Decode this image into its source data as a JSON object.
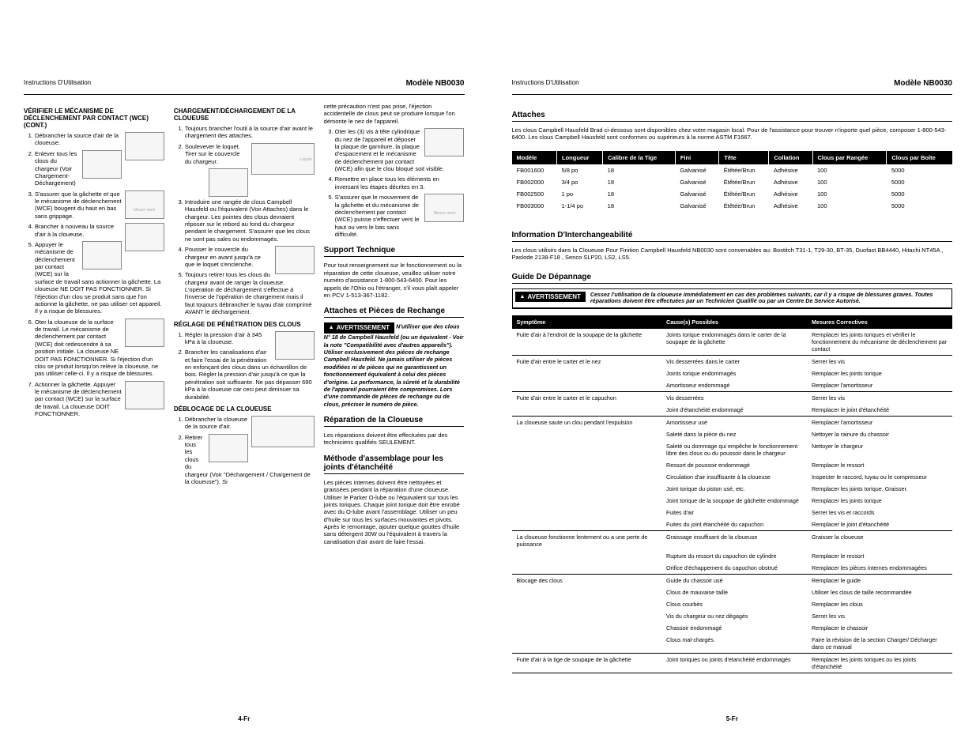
{
  "left": {
    "header": {
      "instructions": "Instructions D'Utilisation",
      "model": "Modèle NB0030"
    },
    "footer": "4-Fr",
    "col1": {
      "title": "VÉRIFIER LE MÉCANISME DE DÉCLENCHEMENT PAR CONTACT (WCE) (CONT.)",
      "items": [
        "Débrancher la source d'air de la cloueuse.",
        "Enlever tous les clous du chargeur (Voir Chargement-Déchargement)",
        "S'assurer que la gâchette et que le mécanisme de déclenchement (WCE) bougent du haut en bas sans grippage.",
        "Brancher à nouveau la source d'air à la cloueuse.",
        "Appuyer le mécanisme de déclenchement par contact (WCE) sur la surface de travail sans actionner la gâchette. La cloueuse NE DOIT PAS FONCTIONNER. Si l'éjection d'un clou se produit sans que l'on actionne la gâchette, ne pas utiliser cet appareil. Il y a risque de blessures.",
        "Oter la cloueuse de la surface de travail. Le mécanisme de déclenchement par contact (WCE) doit redescendre à sa position initiale. La cloueuse NE DOIT PAS FONCTIONNER. Si l'éjection d'un clou se produit lorsqu'on relève la cloueuse, ne pas utiliser celle-ci. Il y a risque de blessures.",
        "Actionner la gâchette. Appuyer le mécanisme de déclenchement par contact (WCE) sur la surface de travail. La cloueuse DOIT FONCTIONNER."
      ],
      "mouvement": "Mouve ment"
    },
    "col2": {
      "title1": "CHARGEMENT/DÉCHARGEMENT DE LA CLOUEUSE",
      "items1": [
        "Toujours brancher l'outil à la source d'air avant le chargement des attaches.",
        "Soulevever le loquet. Tirer sur le couvercle du chargeur.",
        "Introduire une rangée de clous Campbell Hausfeld ou l'équivalent (Voir Attaches) dans le chargeur. Les pointes des clous devraient réposer sur le rebord au fond du chargeur pendant le chargement. S'assurer que les clous ne sont pas sales ou endommagés.",
        "Pousser le couvercle du chargeur en avant jusqu'à ce que le loquet s'enclenche.",
        "Toujours retirer tous les clous du chargeur avant de ranger la cloueuse. L'opération de déchargement s'effectue à l'inverse de l'opération de chargement mais il faut toujours débrancher le tuyau d'air comprimé AVANT le déchargement."
      ],
      "loquet": "Loquet",
      "title2": "RÉGLAGE DE PÉNÉTRATION DES CLOUS",
      "items2": [
        "Régler la pression d'air à 345 kPa à la cloueuse.",
        "Brancher les canalisations d'air et faire l'essai de la pénétration en enfonçant des clous dans un échantillon de bois. Régler la pression d'air jusqu'à ce que la pénétration soit suffisante. Ne pas dépasser 690 kPa à la cloueuse car ceci peut diminuer sa durabilité."
      ],
      "title3": "DÉBLOCAGE DE LA CLOUEUSE",
      "items3": [
        "Débrancher la cloueuse de la source d'air.",
        "Retirer tous les clous du chargeur (Voir \"Déchargement / Chargement de la cloueuse\"). Si"
      ]
    },
    "col3": {
      "intro": "cette précaution n'est pas prise, l'éjection accidentelle de clous peut se produire lorsque l'on démonte le nez de l'appareil.",
      "items": [
        "Oter les (3) vis à tête cylindrique du nez de l'appareil et déposer la plaque de garniture, la plaque d'espacement et le mécanisme de déclenchement par contact (WCE) afin que le clou bloqué soit visible.",
        "Remettre en place tous les éléments en inversant les étapes décrites en 3.",
        "S'assurer que le mouvement de la gâchette et du mécanisme de déclenchement par contact (WCE) puisse s'effectuer vers le haut ou vers le bas sans difficulté."
      ],
      "mouvement": "Mouve-ment",
      "support_title": "Support Technique",
      "support_text": "Pour tout renseignement sur le fonctionnement ou la réparation de cette cloueuse, veuillez utiliser notre numéro d'assistance 1-800-543-6400. Pour les appels de l'Ohio ou l'étranger, s'il vous plaît appeler en PCV 1-513-367-1182.",
      "attaches_title": "Attaches et Pièces de Rechange",
      "warn_label": "AVERTISSEMENT",
      "attaches_warn": "N'utiliser que des clous N° 18 de Campbell Hausfeld (ou un équivalent - Voir la note \"Compatibilité avec d'autres appareils\"). Utiliser exclusivement des pièces de rechange Campbell Hausfeld. Ne jamais utiliser de pièces modifiées ni de pièces qui ne garantissent un fonctionnement équivalent à celui des pièces d'origine. La performance, la sûreté et la durabilité de l'appareil pourraient être compromises. Lors d'une commande de pièces de rechange ou de clous, préciser le numéro de pièce.",
      "repair_title": "Réparation de la Cloueuse",
      "repair_text": "Les réparations doivent être effectuées par des techniciens qualifiés SEULEMENT.",
      "assembly_title": "Méthode d'assemblage pour les joints d'étanchéité",
      "assembly_text": "Les pièces internes doivent être nettoyées et graissées pendant la réparation d'une cloueuse. Utiliser le Parker O-lube ou l'équivalent sur tous les joints toriques. Chaque joint torique doit être enrobé avec du O-lube avant l'assemblage. Utiliser un peu d'huile sur tous les surfaces mouvantes et pivots. Après le remontage, ajouter quelque gouttes d'huile sans détergent 30W ou l'équivalent à travers la canalisation d'air avant de faire l'essai."
    }
  },
  "right": {
    "header": {
      "instructions": "Instructions D'Utilisation",
      "model": "Modèle NB0030"
    },
    "footer": "5-Fr",
    "attaches_title": "Attaches",
    "attaches_intro": "Les clous Campbell Hausfeld Brad ci-dessous sont disponibles chez votre magasin local. Pour de l'assistance pour trouver n'inporte quel pièce, composer 1-800-543-6400. Les clous Campbell Hausfeld sont conformes ou supérieurs à la norme ASTM F1667.",
    "attach_table": {
      "headers": [
        "Modèle",
        "Longueur",
        "Calibre de la Tige",
        "Fini",
        "Tête",
        "Collation",
        "Clous par Rangée",
        "Clous par Boîte"
      ],
      "rows": [
        [
          "FB001600",
          "5/8 po",
          "18",
          "Galvanisé",
          "Étêtée/Brun",
          "Adhésive",
          "100",
          "5000"
        ],
        [
          "FB002000",
          "3/4 po",
          "18",
          "Galvanisé",
          "Étêtée/Brun",
          "Adhésive",
          "100",
          "5000"
        ],
        [
          "FB002500",
          "1 po",
          "18",
          "Galvanisé",
          "Étêtée/Brun",
          "Adhésive",
          "100",
          "5000"
        ],
        [
          "FB003000",
          "1-1/4 po",
          "18",
          "Galvanisé",
          "Étêtée/Brun",
          "Adhésive",
          "100",
          "5000"
        ]
      ]
    },
    "inter_title": "Information D'Interchangeabilité",
    "inter_text": "Les clous utilisés dans la Cloueuse Pour Finition Campbell Hausfeld NB0030 sont convenables au: Bostitch T31-1, T29-30, BT-35, Duofast BB4440, Hitachi NT45A , Paslode 2138-F18 , Senco SLP20, LS2, LS5.",
    "guide_title": "Guide De Dépannage",
    "warn_label": "AVERTISSEMENT",
    "guide_warn": "Cessez l'utilisation de la cloueuse immédiatement en cas des problèmes suivants, car il y a risque de blessures graves. Toutes réparations doivent être effectuées par un Technicien Qualifié ou par un Centre De Service Autorisé.",
    "ts_headers": [
      "Symptôme",
      "Cause(s) Possibles",
      "Mesures Correctives"
    ],
    "ts_rows": [
      {
        "s": "Fuite d'air à l'endroit de la soupape de la gâchette",
        "groups": [
          [
            "Joints torique endommagés dans le carter de la soupape de la gâchette",
            "Remplacer les joints toriques et vérifier le fonctionnement du mécanisme de déclenchement par contact"
          ]
        ]
      },
      {
        "s": "Fuite d'air entre le carter et le nez",
        "groups": [
          [
            "Vis desserrées dans le carter",
            "Serrer les vis"
          ],
          [
            "Joints torique endommagés",
            "Remplacer les joints torique"
          ],
          [
            "Amortisseur endommagé",
            "Remplacer l'amortisseur"
          ]
        ]
      },
      {
        "s": "Fuite d'air entre le carter et le capuchon",
        "groups": [
          [
            "Vis desserrées",
            "Serrer les vis"
          ],
          [
            "Joint d'étanchéité endommagé",
            "Remplacer le joint d'étanchéité"
          ]
        ]
      },
      {
        "s": "La cloueuse saute un clou pendant l'expulsion",
        "groups": [
          [
            "Amortisseur usé",
            "Remplacer l'amortisseur"
          ],
          [
            "Saleté dans la pièce du nez",
            "Nettoyer la rainure du chassoir"
          ],
          [
            "Saleté ou dommage qui empêche le fonctionnement libre des clous ou du poussoir dans le chargeur",
            "Nettoyer le chargeur"
          ],
          [
            "Ressort de poussoir endommagé",
            "Remplacer le ressort"
          ],
          [
            "Circulation d'air insuffisante à la cloueuse",
            "Inspecter le raccord, tuyau ou le compresseur"
          ],
          [
            "Joint torique du piston usé, etc.",
            "Remplacer les joints torique. Graisser."
          ],
          [
            "Joint torique de la soupape de gâchette endommagé",
            "Remplacer les joints torique"
          ],
          [
            "Fuites d'air",
            "Serrer les vis et raccords"
          ],
          [
            "Fuites du joint étanchéité du capuchon",
            "Remplacer le joint d'étanchéité"
          ]
        ]
      },
      {
        "s": "La cloueuse fonctionne lentement ou a une perte de puissance",
        "groups": [
          [
            "Graissage insuffisant de la cloueuse",
            "Graisser la cloueuse"
          ],
          [
            "Rupture du ressort du capuchon de cylindre",
            "Remplacer le ressort"
          ],
          [
            "Orifice d'échappement du capuchon obstrué",
            "Remplacer les pièces internes endommagées"
          ]
        ]
      },
      {
        "s": "Blocage des clous",
        "groups": [
          [
            "Guide du chassoir usé",
            "Remplacer le guide"
          ],
          [
            "Clous de mauvaise taille",
            "Utiliser les clous de taille recommandée"
          ],
          [
            "Clous courbés",
            "Remplacer les clous"
          ],
          [
            "Vis du chargeur ou nez dégagés",
            "Serrer les vis"
          ],
          [
            "Chassoir endommagé",
            "Remplacer le chassoir"
          ],
          [
            "Clous mal-chargés",
            "Faire la révision de la section Charger/ Décharger dans ce manual"
          ]
        ]
      },
      {
        "s": "Fuite d'air à la tige de soupape de la gâchette",
        "groups": [
          [
            "Joint toriques ou joints d'etanchéité endommagés",
            "Remplacer les joints toriques ou les joints d'étanchéité"
          ]
        ]
      }
    ]
  }
}
